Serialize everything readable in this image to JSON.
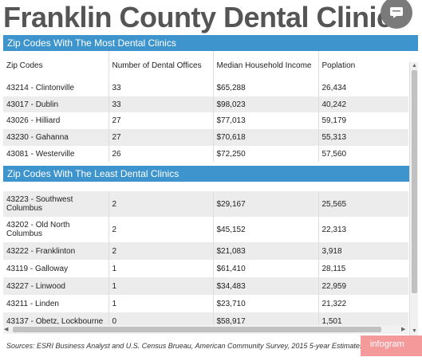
{
  "title": "Franklin County Dental Clinics",
  "colors": {
    "header_blue": "#3e95cd",
    "title_gray": "#555555",
    "brand_pink": "#f49a9a"
  },
  "icons": {
    "comment": "comment-icon",
    "share": "share-icon"
  },
  "most": {
    "header": "Zip Codes With The Most Dental Clinics",
    "columns": [
      "Zip Codes",
      "Number of Dental Offices",
      "Median Household Income",
      "Poplation"
    ],
    "rows": [
      [
        "43214 - Clintonville",
        "33",
        "$65,288",
        "26,434"
      ],
      [
        "43017 - Dublin",
        "33",
        "$98,023",
        "40,242"
      ],
      [
        "43026 - Hilliard",
        "27",
        "$77,013",
        "59,179"
      ],
      [
        "43230 - Gahanna",
        "27",
        "$70,618",
        "55,313"
      ],
      [
        "43081 - Westerville",
        "26",
        "$72,250",
        "57,560"
      ]
    ]
  },
  "least": {
    "header": "Zip Codes With The Least Dental Clinics",
    "rows": [
      [
        "43223 - Southwest Columbus",
        "2",
        "$29,167",
        "25,565"
      ],
      [
        "43202 - Old North Columbus",
        "2",
        "$45,152",
        "22,313"
      ],
      [
        "43222 - Franklinton",
        "2",
        "$21,083",
        "3,918"
      ],
      [
        "43119 - Galloway",
        "1",
        "$61,410",
        "28,115"
      ],
      [
        "43227 - Linwood",
        "1",
        "$34,483",
        "22,959"
      ],
      [
        "43211 - Linden",
        "1",
        "$23,710",
        "21,322"
      ],
      [
        "43137 - Obetz, Lockbourne",
        "0",
        "$58,917",
        "1,501"
      ]
    ]
  },
  "source": "Sources: ESRI Business Analyst and U.S. Census Brueau, American Community Survey, 2015 5-year Estimates",
  "brand": "infogram"
}
